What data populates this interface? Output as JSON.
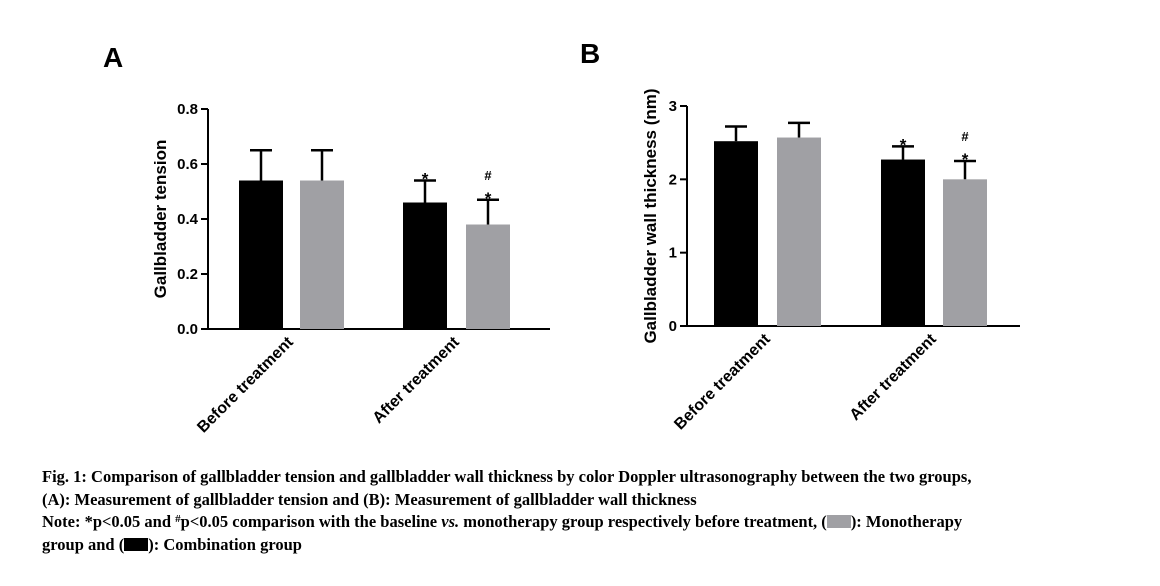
{
  "chart_data": [
    {
      "panel": "A",
      "type": "bar",
      "ylabel": "Gallbladder tension",
      "ylim": [
        0,
        0.8
      ],
      "yticks": [
        "0.0",
        "0.2",
        "0.4",
        "0.6",
        "0.8"
      ],
      "categories": [
        "Before treatment",
        "After treatment"
      ],
      "series": [
        {
          "name": "Combination group",
          "color": "#000000",
          "values": [
            0.54,
            0.46
          ],
          "errors": [
            0.11,
            0.08
          ],
          "annotations": [
            "",
            "*"
          ]
        },
        {
          "name": "Monotherapy group",
          "color": "#a0a0a4",
          "values": [
            0.54,
            0.38
          ],
          "errors": [
            0.11,
            0.09
          ],
          "annotations": [
            "",
            "#*"
          ]
        }
      ]
    },
    {
      "panel": "B",
      "type": "bar",
      "ylabel": "Gallbladder wall thickness (nm)",
      "ylim": [
        0,
        3
      ],
      "yticks": [
        "0",
        "1",
        "2",
        "3"
      ],
      "categories": [
        "Before treatment",
        "After treatment"
      ],
      "series": [
        {
          "name": "Combination group",
          "color": "#000000",
          "values": [
            2.52,
            2.27
          ],
          "errors": [
            0.2,
            0.18
          ],
          "annotations": [
            "",
            "*"
          ]
        },
        {
          "name": "Monotherapy group",
          "color": "#a0a0a4",
          "values": [
            2.57,
            2.0
          ],
          "errors": [
            0.2,
            0.25
          ],
          "annotations": [
            "",
            "#*"
          ]
        }
      ]
    }
  ],
  "caption": {
    "line1": "Fig. 1: Comparison of gallbladder tension and gallbladder wall thickness by color Doppler ultrasonography between the two groups,",
    "line2": "(A): Measurement of gallbladder tension and (B): Measurement of gallbladder wall thickness",
    "note_a": "Note: *p<0.05 and ",
    "note_sup": "#",
    "note_b": "p<0.05 comparison with the baseline ",
    "note_vs": "vs.",
    "note_c": " monotherapy group respectively before treatment, (",
    "note_d": "): Monotherapy",
    "note_e": "group and (",
    "note_f": "): Combination group"
  }
}
